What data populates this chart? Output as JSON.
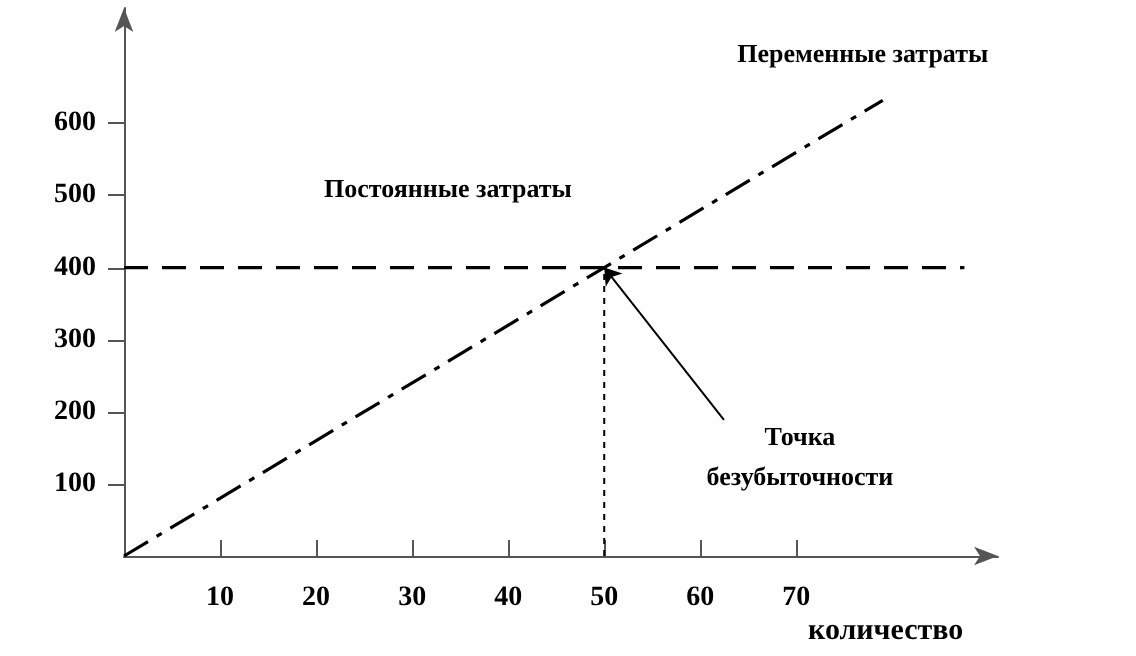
{
  "chart_data": {
    "type": "line",
    "xlabel": "количество",
    "xlim": [
      0,
      91
    ],
    "xticks": [
      10,
      20,
      30,
      40,
      50,
      60,
      70
    ],
    "ylim": [
      0,
      760
    ],
    "yticks": [
      100,
      200,
      300,
      400,
      500,
      600
    ],
    "series": [
      {
        "name": "Переменные затраты",
        "color": "#000000",
        "x": [
          0,
          79
        ],
        "values": [
          0,
          632
        ],
        "line_style": "dashdot"
      },
      {
        "name": "Постоянные затраты",
        "color": "#000000",
        "x": [
          0,
          87.5
        ],
        "values": [
          400,
          400
        ],
        "line_style": "dashed"
      },
      {
        "color": "#000000",
        "x": [
          50,
          50
        ],
        "values": [
          0,
          400
        ],
        "line_style": "dotted"
      }
    ],
    "annotations": [
      {
        "text": "Точка безубыточности",
        "x": 50,
        "y": 400
      }
    ],
    "grid": false,
    "legend": false,
    "marker": "none"
  }
}
